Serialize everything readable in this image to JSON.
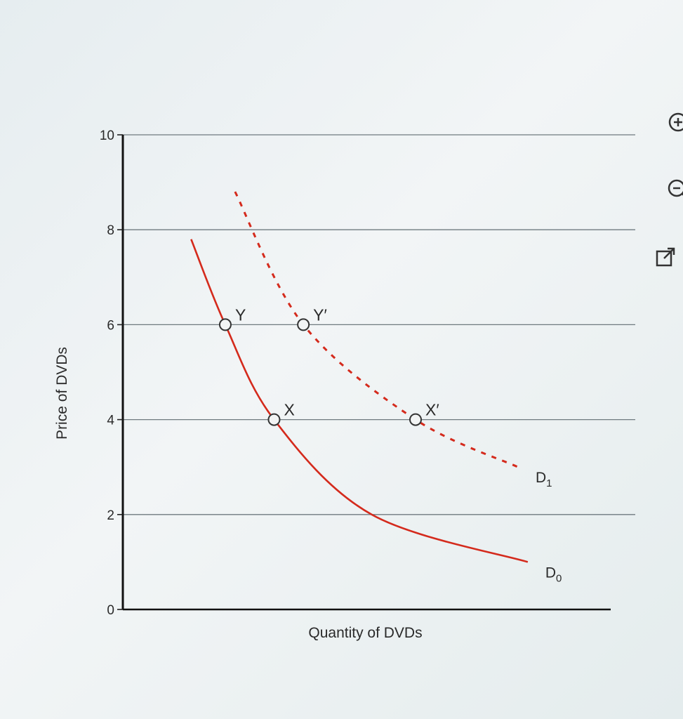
{
  "chart_data": {
    "type": "line",
    "xlabel": "Quantity of DVDs",
    "ylabel": "Price of DVDs",
    "ylim": [
      0,
      10
    ],
    "y_ticks": [
      0,
      2,
      4,
      6,
      8,
      10
    ],
    "grid": true,
    "series": [
      {
        "name": "D0",
        "label_main": "D",
        "label_sub": "0",
        "style": "solid",
        "color": "#d42a1c",
        "points": [
          [
            1.4,
            7.8
          ],
          [
            2.1,
            6.0
          ],
          [
            3.1,
            4.0
          ],
          [
            5.1,
            2.0
          ],
          [
            8.3,
            1.0
          ]
        ]
      },
      {
        "name": "D1",
        "label_main": "D",
        "label_sub": "1",
        "style": "dashed",
        "color": "#d42a1c",
        "points": [
          [
            2.3,
            8.8
          ],
          [
            3.7,
            6.0
          ],
          [
            6.0,
            4.0
          ],
          [
            8.1,
            3.0
          ]
        ]
      }
    ],
    "annotations": [
      {
        "label": "Y",
        "x": 2.1,
        "y": 6
      },
      {
        "label": "X",
        "x": 3.1,
        "y": 4
      },
      {
        "label": "Y′",
        "x": 3.7,
        "y": 6
      },
      {
        "label": "X′",
        "x": 6.0,
        "y": 4
      }
    ]
  },
  "toolbar": {
    "icons": [
      "zoom-in-icon",
      "zoom-out-icon",
      "open-in-new-window-icon"
    ]
  }
}
